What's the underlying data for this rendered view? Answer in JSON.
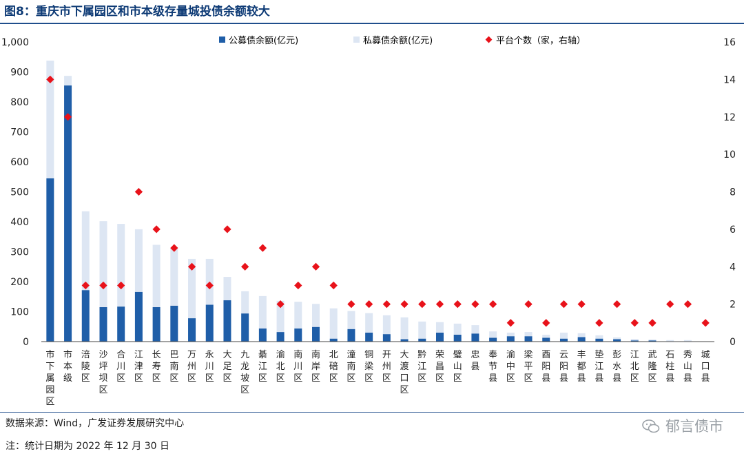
{
  "figure": {
    "title": "图8：重庆市下属园区和市本级存量城投债余额较大",
    "source": "数据来源：Wind，广发证券发展研究中心",
    "note": "注：统计日期为 2022 年 12 月 30 日",
    "watermark": "郁言债市"
  },
  "colors": {
    "public": "#1f5ea8",
    "private": "#dde6f3",
    "platforms": "#e8121a",
    "title": "#0d3a75"
  },
  "chart_data": {
    "type": "bar",
    "stacked": true,
    "categories": [
      "市下属园区",
      "市本级",
      "涪陵区",
      "沙坪坝区",
      "合川区",
      "江津区",
      "长寿区",
      "巴南区",
      "万州区",
      "永川区",
      "大足区",
      "九龙坡区",
      "綦江区",
      "渝北区",
      "南川区",
      "南岸区",
      "北碚区",
      "潼南区",
      "铜梁区",
      "开州区",
      "大渡口区",
      "黔江区",
      "荣昌区",
      "璧山区",
      "忠县",
      "奉节县",
      "渝中区",
      "梁平区",
      "酉阳县",
      "云阳县",
      "丰都县",
      "垫江县",
      "彭水县",
      "江北区",
      "武隆区",
      "石柱县",
      "秀山县",
      "城口县"
    ],
    "series": [
      {
        "name": "公募债余额(亿元)",
        "axis": "left",
        "values": [
          545,
          855,
          172,
          115,
          117,
          166,
          115,
          120,
          78,
          123,
          138,
          94,
          44,
          32,
          44,
          49,
          10,
          42,
          30,
          25,
          8,
          10,
          30,
          23,
          27,
          13,
          18,
          18,
          13,
          10,
          15,
          10,
          8,
          4,
          4,
          1,
          1,
          0
        ]
      },
      {
        "name": "私募债余额(亿元)",
        "axis": "left",
        "values": [
          393,
          32,
          263,
          287,
          276,
          209,
          208,
          190,
          198,
          153,
          78,
          74,
          108,
          104,
          89,
          77,
          101,
          60,
          65,
          63,
          73,
          57,
          35,
          37,
          28,
          21,
          12,
          14,
          10,
          20,
          13,
          11,
          6,
          5,
          3,
          4,
          4,
          1
        ]
      },
      {
        "name": "平台个数（家，右轴）",
        "axis": "right",
        "type": "scatter",
        "values": [
          14,
          12,
          3,
          3,
          3,
          8,
          6,
          5,
          4,
          3,
          6,
          4,
          5,
          2,
          3,
          4,
          3,
          2,
          2,
          2,
          2,
          2,
          2,
          2,
          2,
          2,
          1,
          2,
          1,
          2,
          2,
          1,
          2,
          1,
          1,
          2,
          2,
          1
        ]
      }
    ],
    "y_left": {
      "ticks": [
        "0",
        "100",
        "200",
        "300",
        "400",
        "500",
        "600",
        "700",
        "800",
        "900",
        "1,000"
      ],
      "range": [
        0,
        1000
      ]
    },
    "y_right": {
      "ticks": [
        "0",
        "2",
        "4",
        "6",
        "8",
        "10",
        "12",
        "14",
        "16"
      ],
      "range": [
        0,
        16
      ]
    },
    "legend": "top",
    "grid": false
  }
}
